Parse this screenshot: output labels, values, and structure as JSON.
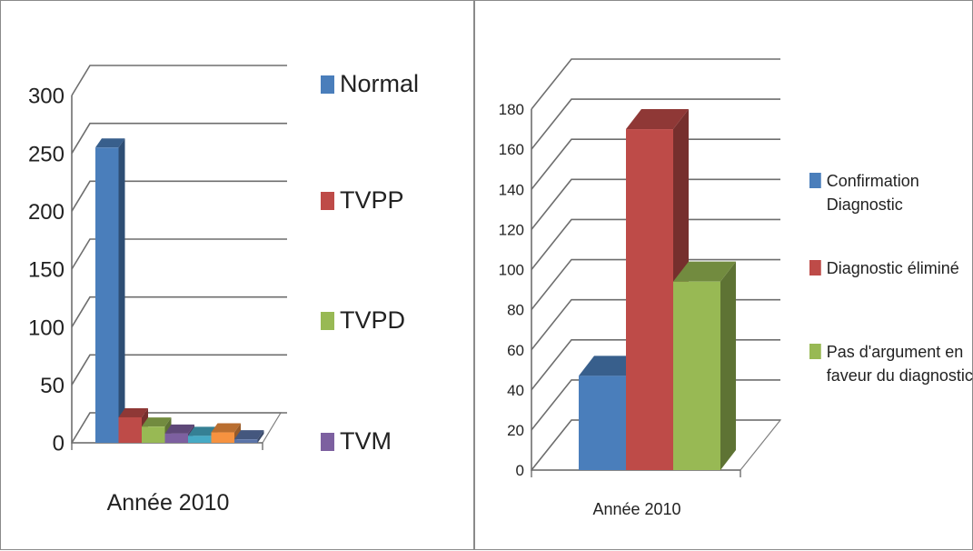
{
  "chart_data": [
    {
      "type": "bar",
      "categories": [
        "Année 2010"
      ],
      "series": [
        {
          "name": "Normal",
          "values": [
            255
          ],
          "color": "#4a7ebb"
        },
        {
          "name": "TVPP",
          "values": [
            22
          ],
          "color": "#be4b48"
        },
        {
          "name": "TVPD",
          "values": [
            14
          ],
          "color": "#98b954"
        },
        {
          "name": "TVM",
          "values": [
            8
          ],
          "color": "#7d60a0"
        },
        {
          "name": "",
          "values": [
            6
          ],
          "color": "#46aac5"
        },
        {
          "name": "",
          "values": [
            9
          ],
          "color": "#f69240"
        },
        {
          "name": "",
          "values": [
            3
          ],
          "color": "#5b74a8"
        }
      ],
      "xlabel": "",
      "ylabel": "",
      "ylim": [
        0,
        300
      ],
      "yticks": [
        0,
        50,
        100,
        150,
        200,
        250,
        300
      ],
      "grid": true,
      "legend_position": "right"
    },
    {
      "type": "bar",
      "categories": [
        "Année 2010"
      ],
      "series": [
        {
          "name": "Confirmation Diagnostic",
          "values": [
            47
          ],
          "color": "#4a7ebb"
        },
        {
          "name": "Diagnostic éliminé",
          "values": [
            170
          ],
          "color": "#be4b48"
        },
        {
          "name": "Pas d'argument en faveur du diagnostic",
          "values": [
            94
          ],
          "color": "#98b954"
        }
      ],
      "xlabel": "",
      "ylabel": "",
      "ylim": [
        0,
        180
      ],
      "yticks": [
        0,
        20,
        40,
        60,
        80,
        100,
        120,
        140,
        160,
        180
      ],
      "grid": true,
      "legend_position": "right"
    }
  ]
}
